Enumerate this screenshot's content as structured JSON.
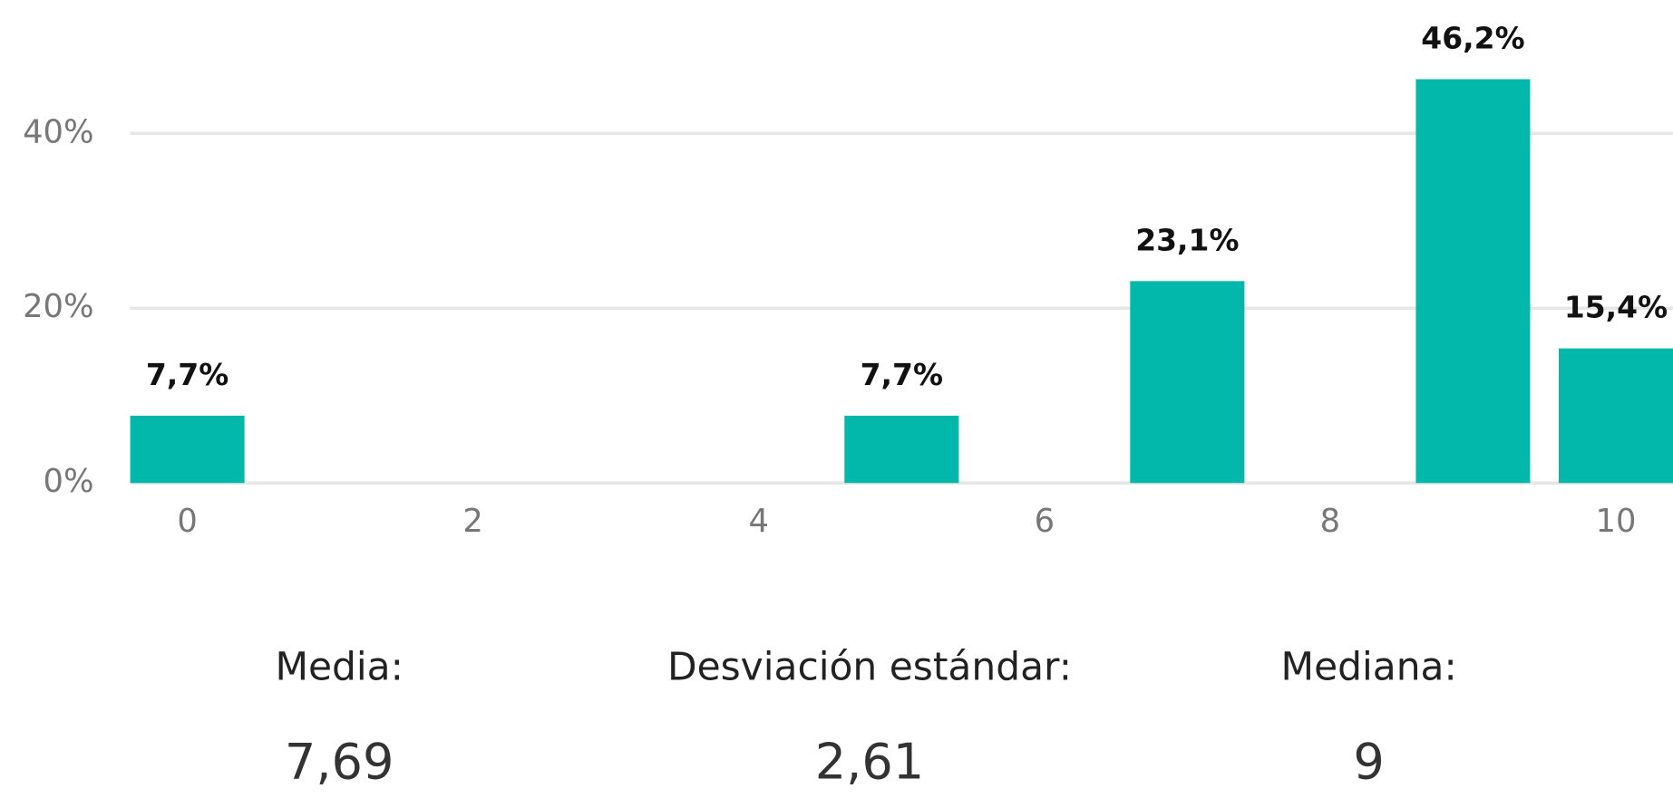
{
  "chart_data": {
    "type": "bar",
    "x": [
      0,
      5,
      7,
      9,
      10
    ],
    "values": [
      7.7,
      7.7,
      23.1,
      46.2,
      15.4
    ],
    "value_labels": [
      "7,7%",
      "7,7%",
      "23,1%",
      "46,2%",
      "15,4%"
    ],
    "color": "#02b8aa",
    "xlim": [
      -0.4,
      10.4
    ],
    "xticks": [
      0,
      2,
      4,
      6,
      8,
      10
    ],
    "ylim": [
      0,
      50
    ],
    "yticks": [
      {
        "value": 0,
        "label": "0%"
      },
      {
        "value": 20,
        "label": "20%"
      },
      {
        "value": 40,
        "label": "40%"
      }
    ],
    "grid": true
  },
  "stats": [
    {
      "label": "Media:",
      "value": "7,69"
    },
    {
      "label": "Desviación estándar:",
      "value": "2,61"
    },
    {
      "label": "Mediana:",
      "value": "9"
    }
  ]
}
